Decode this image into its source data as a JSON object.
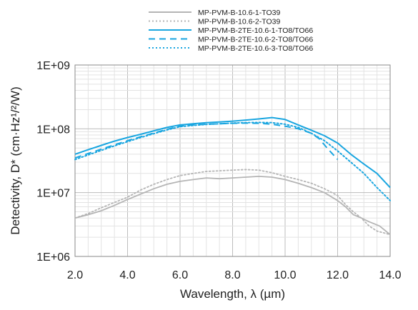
{
  "chart_data": {
    "type": "line",
    "xlabel": "Wavelength, λ (µm)",
    "ylabel": "Detectivity, D* (cm·Hz¹/²/W)",
    "xlim": [
      2.0,
      14.0
    ],
    "ylim": [
      1000000,
      1000000000
    ],
    "y_scale": "log",
    "x_ticks": [
      "2.0",
      "4.0",
      "6.0",
      "8.0",
      "10.0",
      "12.0",
      "14.0"
    ],
    "y_ticks": [
      "1E+06",
      "1E+07",
      "1E+08",
      "1E+09"
    ],
    "grid": true,
    "legend_position": "top",
    "series": [
      {
        "name": "MP-PVM-B-10.6-1-TO39",
        "color": "#b5b5b5",
        "dash": "solid",
        "x": [
          2.0,
          2.5,
          3.0,
          3.5,
          4.0,
          4.5,
          5.0,
          5.5,
          6.0,
          6.5,
          7.0,
          7.5,
          8.0,
          8.5,
          9.0,
          9.5,
          10.0,
          10.5,
          11.0,
          11.5,
          12.0,
          12.3,
          12.6,
          12.9,
          13.2,
          13.6,
          14.0
        ],
        "y": [
          4000000,
          4500000,
          5200000,
          6300000,
          7800000,
          9500000,
          11500000,
          13500000,
          15000000,
          16000000,
          17000000,
          16500000,
          17000000,
          17500000,
          18000000,
          17500000,
          16000000,
          14000000,
          12000000,
          10000000,
          7500000,
          6000000,
          4500000,
          4000000,
          3500000,
          3000000,
          2200000
        ]
      },
      {
        "name": "MP-PVM-B-10.6-2-TO39",
        "color": "#b5b5b5",
        "dash": "dotted",
        "x": [
          2.0,
          2.5,
          3.0,
          3.5,
          4.0,
          4.5,
          5.0,
          5.5,
          6.0,
          6.5,
          7.0,
          7.5,
          8.0,
          8.5,
          9.0,
          9.5,
          10.0,
          10.5,
          11.0,
          11.5,
          12.0,
          12.3,
          12.6,
          12.9,
          13.2,
          13.5,
          14.0
        ],
        "y": [
          4000000,
          4700000,
          5800000,
          7000000,
          8500000,
          11000000,
          13500000,
          16000000,
          18500000,
          20000000,
          21500000,
          22000000,
          22500000,
          23000000,
          22500000,
          20500000,
          18000000,
          16000000,
          14000000,
          11500000,
          9000000,
          6500000,
          5000000,
          4000000,
          3000000,
          2500000,
          2200000
        ]
      },
      {
        "name": "MP-PVM-B-2TE-10.6-1-TO8/TO66",
        "color": "#1aa6e0",
        "dash": "solid",
        "x": [
          2.0,
          2.5,
          3.0,
          3.5,
          4.0,
          4.5,
          5.0,
          5.5,
          6.0,
          6.5,
          7.0,
          7.5,
          8.0,
          8.5,
          9.0,
          9.5,
          10.0,
          10.5,
          11.0,
          11.5,
          12.0,
          12.5,
          13.0,
          13.5,
          14.0
        ],
        "y": [
          40000000,
          47000000,
          55000000,
          64000000,
          73000000,
          82000000,
          93000000,
          105000000,
          115000000,
          120000000,
          125000000,
          128000000,
          132000000,
          137000000,
          143000000,
          150000000,
          140000000,
          115000000,
          95000000,
          78000000,
          60000000,
          40000000,
          28000000,
          20000000,
          12000000
        ]
      },
      {
        "name": "MP-PVM-B-2TE-10.6-2-TO8/TO66",
        "color": "#1aa6e0",
        "dash": "dashed",
        "x": [
          2.0,
          2.5,
          3.0,
          3.5,
          4.0,
          4.5,
          5.0,
          5.5,
          6.0,
          6.5,
          7.0,
          7.5,
          8.0,
          8.5,
          9.0,
          9.5,
          10.0,
          10.5,
          11.0,
          11.3,
          11.6,
          12.0
        ],
        "y": [
          35000000,
          41000000,
          48000000,
          56000000,
          65000000,
          75000000,
          86000000,
          98000000,
          110000000,
          115000000,
          118000000,
          120000000,
          122000000,
          123000000,
          122000000,
          118000000,
          110000000,
          100000000,
          85000000,
          70000000,
          50000000,
          33000000
        ]
      },
      {
        "name": "MP-PVM-B-2TE-10.6-3-TO8/TO66",
        "color": "#1aa6e0",
        "dash": "dotted",
        "x": [
          2.0,
          2.5,
          3.0,
          3.5,
          4.0,
          4.5,
          5.0,
          5.5,
          6.0,
          6.5,
          7.0,
          7.5,
          8.0,
          8.5,
          9.0,
          9.5,
          10.0,
          10.5,
          11.0,
          11.5,
          12.0,
          12.5,
          13.0,
          13.5,
          14.0
        ],
        "y": [
          33000000,
          39000000,
          46000000,
          54000000,
          63000000,
          73000000,
          84000000,
          96000000,
          108000000,
          113000000,
          117000000,
          120000000,
          123000000,
          125000000,
          126000000,
          125000000,
          118000000,
          105000000,
          85000000,
          65000000,
          45000000,
          30000000,
          20000000,
          12000000,
          7500000
        ]
      }
    ]
  }
}
